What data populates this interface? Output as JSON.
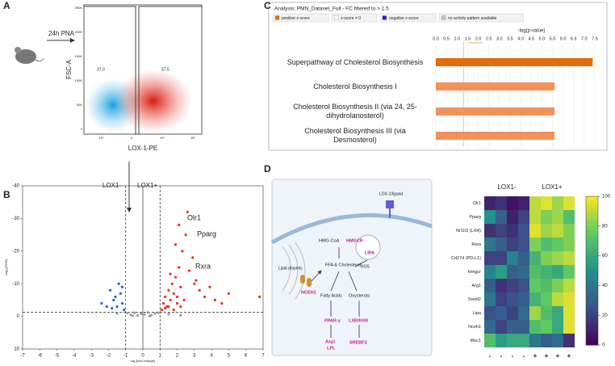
{
  "panels": [
    "A",
    "B",
    "C",
    "D"
  ],
  "flow": {
    "label": "24h PNA",
    "y_label": "FSC-A",
    "x_label": "LOX-1-PE",
    "y_ticks": [
      "250K",
      "200K",
      "150K",
      "100K",
      "50K",
      "0"
    ],
    "x_ticks": [
      "-10⁴",
      "0",
      "10⁴",
      "10⁵"
    ],
    "gates": [
      "37.0",
      "57.5"
    ]
  },
  "split": {
    "left": "LOX1-",
    "right": "LOX1+"
  },
  "chart_data": [
    {
      "type": "scatter",
      "x_label": "log₂(fold change)",
      "y_label": "-log₁₀(FDR)",
      "xlim": [
        -7,
        7
      ],
      "xticks": [
        -7,
        -6,
        -5,
        -4,
        -3,
        -2,
        -1,
        0,
        1,
        2,
        3,
        4,
        5,
        6,
        7
      ],
      "ylim": [
        10,
        -40
      ],
      "yticks": [
        -40,
        -30,
        -20,
        -10,
        0,
        10
      ],
      "x_thresholds": [
        -1,
        1
      ],
      "y_threshold": -1.3,
      "annotations": [
        "Olr1",
        "Pparg",
        "Rxra"
      ],
      "series": [
        {
          "color": "#e8321c",
          "x": [
            1.1,
            1.2,
            1.3,
            1.4,
            1.5,
            1.6,
            1.7,
            1.8,
            1.9,
            2.0,
            2.1,
            2.2,
            2.3,
            2.5,
            2.7,
            2.9,
            3.1,
            3.3,
            3.6,
            3.9,
            4.2,
            4.6,
            5.0,
            6.8,
            1.3,
            1.5,
            1.8,
            2.0,
            2.2,
            2.4,
            1.6,
            1.9,
            2.6,
            3.0,
            2.1
          ],
          "y": [
            -2,
            -4,
            -6,
            -3,
            -8,
            -5,
            -10,
            -7,
            -12,
            -4,
            -15,
            -9,
            -20,
            -25,
            -14,
            -18,
            -11,
            -8,
            -6,
            -9,
            -5,
            -4,
            -7,
            -6,
            -2.5,
            -3,
            -2,
            -6,
            -3,
            -5,
            -13,
            -22,
            -32,
            -10,
            -28
          ]
        },
        {
          "color": "#2c5ed8",
          "x": [
            -1.1,
            -1.2,
            -1.3,
            -1.5,
            -1.7,
            -1.9,
            -2.1,
            -1.4,
            -1.6,
            -1.8,
            -1.2,
            -2.4
          ],
          "y": [
            -2,
            -4,
            -7,
            -3,
            -5,
            -8,
            -3,
            -10,
            -6,
            -2.5,
            -9,
            -4
          ]
        },
        {
          "color": "#9a9a9a",
          "x": [
            -0.9,
            -0.7,
            -0.5,
            -0.3,
            -0.1,
            0.1,
            0.3,
            0.5,
            0.7,
            0.9,
            -0.6,
            0.4,
            1.5,
            -1.5,
            2.2
          ],
          "y": [
            -1,
            -0.5,
            -1.1,
            -0.3,
            -0.8,
            -0.6,
            -1.2,
            -0.4,
            -0.9,
            -1.1,
            -0.2,
            -0.1,
            -0.7,
            -0.9,
            -0.3
          ]
        }
      ]
    },
    {
      "type": "bar",
      "orientation": "horizontal",
      "title": "Analysis: PMN_Dataset_Full - FC filtered to > 1.5",
      "legend": [
        "positive z-score",
        "z-score = 0",
        "negative z-score",
        "no activity pattern available"
      ],
      "legend_colors": [
        "#e36c0a",
        "#ffffff",
        "#1f1fbf",
        "#c0c0c0"
      ],
      "x_label": "-log(p-value)",
      "threshold": 1.3,
      "threshold_label": "Threshold",
      "xlim": [
        0,
        7.75
      ],
      "xticks": [
        {
          "value": 0,
          "label": "0.0"
        },
        0.5,
        {
          "value": 1,
          "label": "1.0"
        },
        1.5,
        {
          "value": 2,
          "label": "2.0"
        },
        2.5,
        {
          "value": 3,
          "label": "3.0"
        },
        3.5,
        {
          "value": 4,
          "label": "4.0"
        },
        4.5,
        {
          "value": 5,
          "label": "5.0"
        },
        5.5,
        {
          "value": 6,
          "label": "6.0"
        },
        6.5,
        {
          "value": 7,
          "label": "7.0"
        },
        7.5
      ],
      "categories": [
        "Superpathway of Cholesterol Biosynthesis",
        "Cholesterol Biosynthesis I",
        "Cholesterol Biosynthesis II (via 24, 25-dihydrolanosterol)",
        "Cholesterol Biosynthesis III (via Desmosterol)"
      ],
      "values": [
        7.4,
        5.6,
        5.6,
        5.6
      ],
      "colors": [
        "#e36c0a",
        "#f0935a",
        "#f0935a",
        "#f0935a"
      ]
    },
    {
      "type": "heatmap",
      "groups": [
        "LOX1-",
        "LOX1+"
      ],
      "rows": [
        "Olr1",
        "Pparg",
        "Nr1h3 (LXR)",
        "Rxra",
        "Cd274 (PD-L1)",
        "Hmgcr",
        "Arg1",
        "Srebf2",
        "Lipa",
        "Nceh1",
        "Muc1"
      ],
      "columns": [
        "-",
        "-",
        "-",
        "-",
        "+",
        "+",
        "+",
        "+"
      ],
      "values": [
        [
          10,
          15,
          5,
          10,
          90,
          95,
          85,
          95
        ],
        [
          50,
          30,
          10,
          20,
          90,
          80,
          85,
          70
        ],
        [
          15,
          20,
          15,
          25,
          95,
          85,
          90,
          80
        ],
        [
          40,
          30,
          20,
          25,
          80,
          70,
          75,
          80
        ],
        [
          20,
          20,
          45,
          30,
          65,
          80,
          85,
          90
        ],
        [
          45,
          55,
          30,
          35,
          70,
          65,
          60,
          75
        ],
        [
          30,
          15,
          20,
          25,
          75,
          70,
          80,
          90
        ],
        [
          40,
          20,
          25,
          30,
          65,
          75,
          90,
          95
        ],
        [
          25,
          30,
          20,
          35,
          85,
          70,
          60,
          95
        ],
        [
          35,
          20,
          30,
          30,
          70,
          75,
          60,
          95
        ],
        [
          70,
          55,
          60,
          60,
          40,
          30,
          35,
          15
        ]
      ],
      "clim": [
        0,
        100
      ],
      "cticks": [
        0,
        20,
        40,
        60,
        80,
        100
      ],
      "colormap": "viridis"
    }
  ],
  "diagram": {
    "receptor": "LOX-1/ligand",
    "hmgcoa": "HMG-CoA",
    "hmgcr": "HMGCR",
    "lipa": "LIPA",
    "ros": "ROS",
    "ffa": "FFA & Cholesterol",
    "droplets": "Lipid droplets",
    "nceh1": "NCEH1",
    "fatty": "Fatty Acids",
    "oxy": "Oxysterols",
    "ppar": "PPAR-γ",
    "lxr": "LXR/RXR",
    "arg1": "Arg1",
    "lpl": "LPL",
    "srebf2": "SREBF2"
  }
}
